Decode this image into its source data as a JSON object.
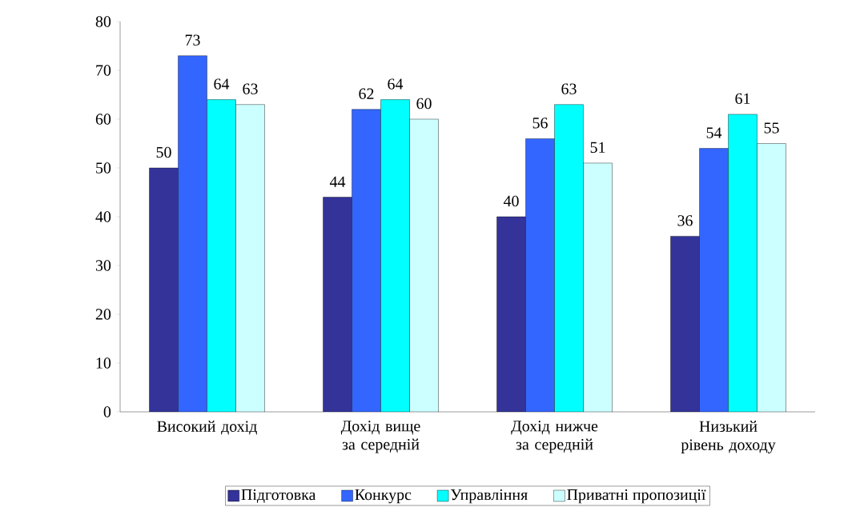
{
  "chart_data": {
    "type": "bar",
    "categories": [
      "Високий дохід",
      "Дохід вище за середній",
      "Дохід нижче за середній",
      "Низький рівень доходу"
    ],
    "series": [
      {
        "name": "Підготовка",
        "color": "#333399",
        "values": [
          50,
          44,
          40,
          36
        ]
      },
      {
        "name": "Конкурс",
        "color": "#3366ff",
        "values": [
          73,
          62,
          56,
          54
        ]
      },
      {
        "name": "Управління",
        "color": "#00ffff",
        "values": [
          64,
          64,
          63,
          61
        ]
      },
      {
        "name": "Приватні пропозиції",
        "color": "#ccffff",
        "values": [
          63,
          60,
          51,
          55
        ]
      }
    ],
    "ylim": [
      0,
      80
    ],
    "yticks": [
      0,
      10,
      20,
      30,
      40,
      50,
      60,
      70,
      80
    ],
    "data_labels": true,
    "grid": false,
    "legend": "bottom"
  }
}
